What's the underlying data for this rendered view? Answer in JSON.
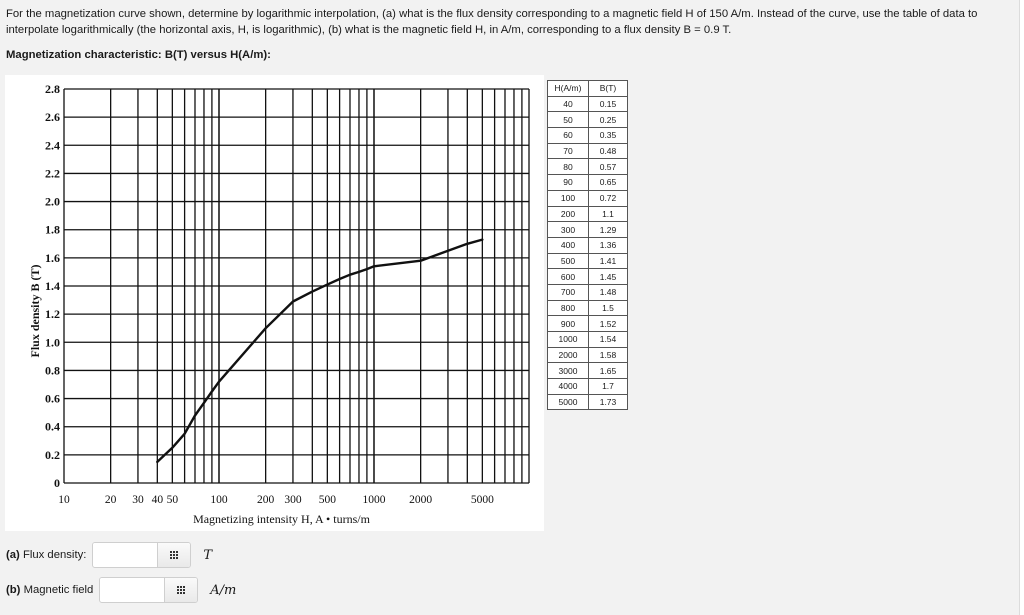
{
  "question": {
    "text": "For the magnetization curve shown, determine by logarithmic interpolation, (a) what is the flux density corresponding to a magnetic field H of 150 A/m. Instead of the curve, use the table of data to interpolate logarithmically (the horizontal axis, H, is logarithmic), (b) what is the magnetic field H, in A/m, corresponding to a flux density B = 0.9 T.",
    "subtitle": "Magnetization characteristic: B(T) versus H(A/m):"
  },
  "table": {
    "headers": [
      "H(A/m)",
      "B(T)"
    ],
    "rows": [
      [
        "40",
        "0.15"
      ],
      [
        "50",
        "0.25"
      ],
      [
        "60",
        "0.35"
      ],
      [
        "70",
        "0.48"
      ],
      [
        "80",
        "0.57"
      ],
      [
        "90",
        "0.65"
      ],
      [
        "100",
        "0.72"
      ],
      [
        "200",
        "1.1"
      ],
      [
        "300",
        "1.29"
      ],
      [
        "400",
        "1.36"
      ],
      [
        "500",
        "1.41"
      ],
      [
        "600",
        "1.45"
      ],
      [
        "700",
        "1.48"
      ],
      [
        "800",
        "1.5"
      ],
      [
        "900",
        "1.52"
      ],
      [
        "1000",
        "1.54"
      ],
      [
        "2000",
        "1.58"
      ],
      [
        "3000",
        "1.65"
      ],
      [
        "4000",
        "1.7"
      ],
      [
        "5000",
        "1.73"
      ]
    ]
  },
  "answers": {
    "a": {
      "prefix": "(a)",
      "label": " Flux density:",
      "value": "",
      "unit": "T",
      "keypad_icon": "keypad-icon"
    },
    "b": {
      "prefix": "(b)",
      "label": " Magnetic field",
      "value": "",
      "unit": "A/m",
      "keypad_icon": "keypad-icon"
    }
  },
  "chart_data": {
    "type": "line",
    "title": "",
    "xlabel": "Magnetizing intensity H, A • turns/m",
    "ylabel": "Flux density B (T)",
    "xscale": "log",
    "xlim": [
      10,
      10000
    ],
    "ylim": [
      0,
      2.8
    ],
    "x_tick_labels": [
      "10",
      "20",
      "30",
      "40",
      "50",
      "100",
      "200",
      "300",
      "500",
      "1000",
      "2000",
      "5000"
    ],
    "x_tick_values": [
      10,
      20,
      30,
      40,
      50,
      100,
      200,
      300,
      500,
      1000,
      2000,
      5000
    ],
    "y_tick_labels": [
      "0",
      "0.2",
      "0.4",
      "0.6",
      "0.8",
      "1.0",
      "1.2",
      "1.4",
      "1.6",
      "1.8",
      "2.0",
      "2.2",
      "2.4",
      "2.6",
      "2.8"
    ],
    "grid": true,
    "legend": null,
    "series": [
      {
        "name": "B-H curve",
        "x": [
          40,
          50,
          60,
          70,
          80,
          90,
          100,
          200,
          300,
          400,
          500,
          600,
          700,
          800,
          900,
          1000,
          2000,
          3000,
          4000,
          5000
        ],
        "y": [
          0.15,
          0.25,
          0.35,
          0.48,
          0.57,
          0.65,
          0.72,
          1.1,
          1.29,
          1.36,
          1.41,
          1.45,
          1.48,
          1.5,
          1.52,
          1.54,
          1.58,
          1.65,
          1.7,
          1.73
        ]
      }
    ]
  }
}
